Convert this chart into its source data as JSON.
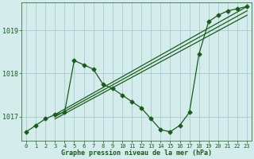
{
  "title": "Graphe pression niveau de la mer (hPa)",
  "bg_color": "#d4ecec",
  "grid_color": "#aacccc",
  "line_color": "#1a5c1a",
  "marker_color": "#1a5c1a",
  "xlim": [
    -0.5,
    23.5
  ],
  "ylim": [
    1016.45,
    1019.65
  ],
  "yticks": [
    1017,
    1018,
    1019
  ],
  "xticks": [
    0,
    1,
    2,
    3,
    4,
    5,
    6,
    7,
    8,
    9,
    10,
    11,
    12,
    13,
    14,
    15,
    16,
    17,
    18,
    19,
    20,
    21,
    22,
    23
  ],
  "series1_x": [
    0,
    1,
    2,
    3,
    4,
    5,
    6,
    7,
    8,
    9,
    10,
    11,
    12,
    13,
    14,
    15,
    16,
    17,
    18,
    19,
    20,
    21,
    22,
    23
  ],
  "series1_y": [
    1016.65,
    1016.8,
    1016.95,
    1017.05,
    1017.1,
    1018.3,
    1018.2,
    1018.1,
    1017.75,
    1017.65,
    1017.5,
    1017.35,
    1017.2,
    1016.95,
    1016.7,
    1016.65,
    1016.8,
    1017.1,
    1018.45,
    1019.2,
    1019.35,
    1019.45,
    1019.5,
    1019.55
  ],
  "series2_x": [
    3,
    23
  ],
  "series2_y": [
    1017.05,
    1019.55
  ],
  "series3_x": [
    3,
    23
  ],
  "series3_y": [
    1017.0,
    1019.45
  ],
  "series4_x": [
    3,
    23
  ],
  "series4_y": [
    1016.95,
    1019.35
  ]
}
